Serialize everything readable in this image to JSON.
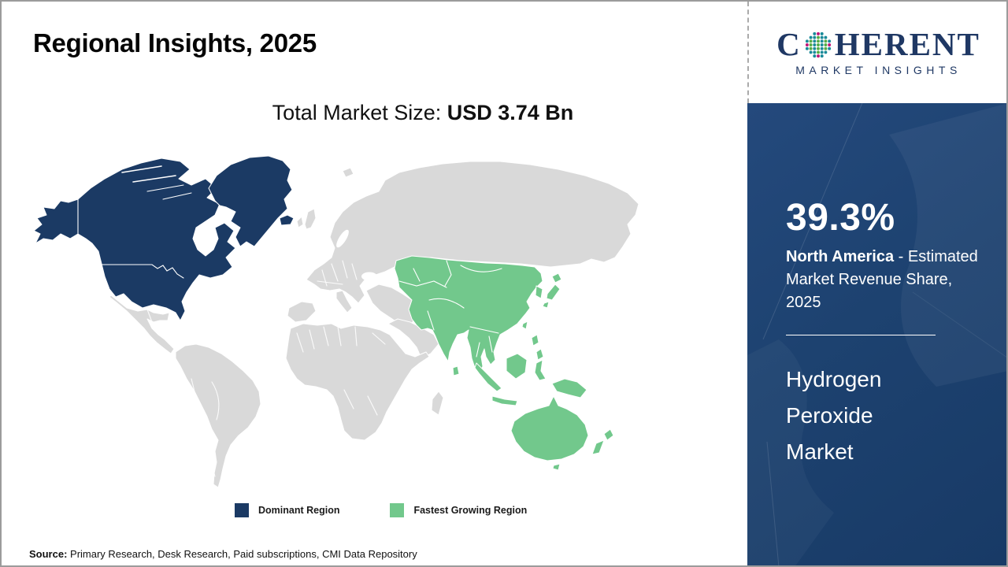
{
  "page": {
    "title": "Regional Insights, 2025",
    "subtitle_label": "Total Market Size: ",
    "subtitle_value": "USD 3.74 Bn",
    "source_label": "Source:",
    "source_text": " Primary Research, Desk Research, Paid subscriptions, CMI Data Repository"
  },
  "logo": {
    "brand_prefix": "C",
    "brand_suffix": "HERENT",
    "brand_subtitle": "MARKET INSIGHTS"
  },
  "legend": {
    "items": [
      {
        "label": "Dominant Region",
        "key": "dominant"
      },
      {
        "label": "Fastest Growing Region",
        "key": "fastest"
      }
    ]
  },
  "sidebar": {
    "share_value": "39.3%",
    "share_region": "North America",
    "share_description": " - Estimated Market Revenue Share, 2025",
    "market_name": "Hydrogen Peroxide Market"
  },
  "chart_data": {
    "type": "choropleth-map",
    "title": "Regional Insights, 2025",
    "total_market_size": "USD 3.74 Bn",
    "regions": [
      {
        "name": "North America",
        "status": "Dominant Region",
        "share_2025": "39.3%"
      },
      {
        "name": "Asia Pacific",
        "status": "Fastest Growing Region"
      },
      {
        "name": "Rest of World",
        "status": "neutral"
      }
    ],
    "legend": [
      "Dominant Region",
      "Fastest Growing Region"
    ]
  },
  "colors": {
    "dominant": "#1B3A64",
    "fastest": "#72C88C",
    "neutral": "#D9D9D9",
    "panel": "#1D4270",
    "brand": "#1F3864",
    "logoTeal": "#1A8A99",
    "logoGreen": "#55AC46",
    "logoMagenta": "#C01578"
  }
}
